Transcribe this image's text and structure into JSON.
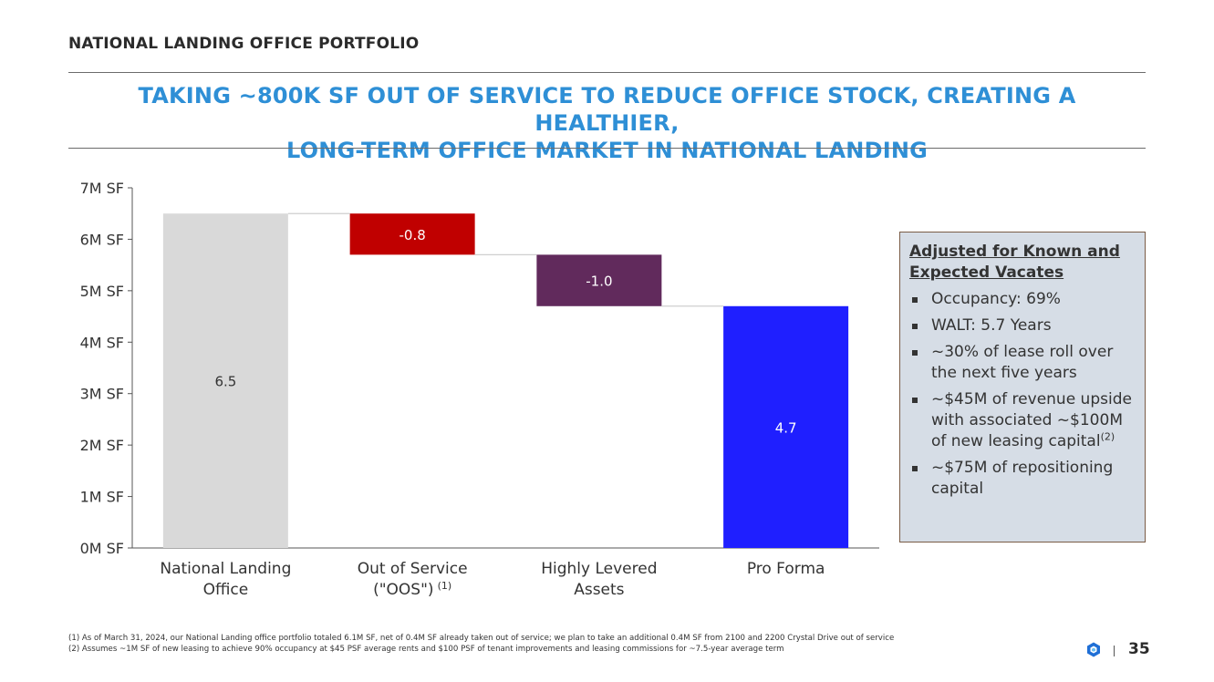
{
  "header": {
    "section_title": "NATIONAL LANDING OFFICE PORTFOLIO",
    "headline_line1": "TAKING ~800K SF OUT OF SERVICE TO REDUCE OFFICE STOCK, CREATING A HEALTHIER,",
    "headline_line2": "LONG-TERM OFFICE MARKET IN NATIONAL LANDING"
  },
  "colors": {
    "headline": "#2e8fd6",
    "bar_start": "#d9d9d9",
    "bar_oos": "#c00000",
    "bar_levered": "#612a5c",
    "bar_proforma": "#1f1fff"
  },
  "chart_data": {
    "type": "waterfall",
    "title": "",
    "ylim": [
      0,
      7
    ],
    "yticks": [
      "0M SF",
      "1M SF",
      "2M SF",
      "3M SF",
      "4M SF",
      "5M SF",
      "6M SF",
      "7M SF"
    ],
    "categories": [
      {
        "line1": "National Landing",
        "line2": "Office",
        "sup": ""
      },
      {
        "line1": "Out of Service",
        "line2": "(\"OOS\")",
        "sup": "(1)"
      },
      {
        "line1": "Highly Levered",
        "line2": "Assets",
        "sup": ""
      },
      {
        "line1": "Pro Forma",
        "line2": "",
        "sup": ""
      }
    ],
    "bars": [
      {
        "kind": "total",
        "start": 0,
        "end": 6.5,
        "label": "6.5",
        "color": "#d9d9d9",
        "label_color": "#333333"
      },
      {
        "kind": "delta",
        "start": 6.5,
        "end": 5.7,
        "label": "-0.8",
        "color": "#c00000",
        "label_color": "#ffffff"
      },
      {
        "kind": "delta",
        "start": 5.7,
        "end": 4.7,
        "label": "-1.0",
        "color": "#612a5c",
        "label_color": "#ffffff"
      },
      {
        "kind": "total",
        "start": 0,
        "end": 4.7,
        "label": "4.7",
        "color": "#1f1fff",
        "label_color": "#ffffff"
      }
    ]
  },
  "callout": {
    "title_line1": "Adjusted for Known and",
    "title_line2": "Expected Vacates",
    "items": [
      {
        "text": "Occupancy: 69%",
        "sup": ""
      },
      {
        "text": "WALT: 5.7 Years",
        "sup": ""
      },
      {
        "text": "~30% of lease roll over the next five years",
        "sup": ""
      },
      {
        "text": "~$45M of revenue upside with associated ~$100M of new leasing capital",
        "sup": "(2)"
      },
      {
        "text": "~$75M of repositioning capital",
        "sup": ""
      }
    ]
  },
  "footnotes": {
    "note1": "(1) As of March 31, 2024, our National Landing office portfolio totaled 6.1M SF, net of 0.4M SF already taken out of service; we plan to take an additional 0.4M SF from 2100 and 2200 Crystal Drive out of service",
    "note2": "(2) Assumes ~1M SF of new leasing to achieve 90% occupancy at $45 PSF average rents and $100 PSF of tenant improvements and leasing commissions for ~7.5-year average term"
  },
  "page": {
    "number": "35"
  }
}
